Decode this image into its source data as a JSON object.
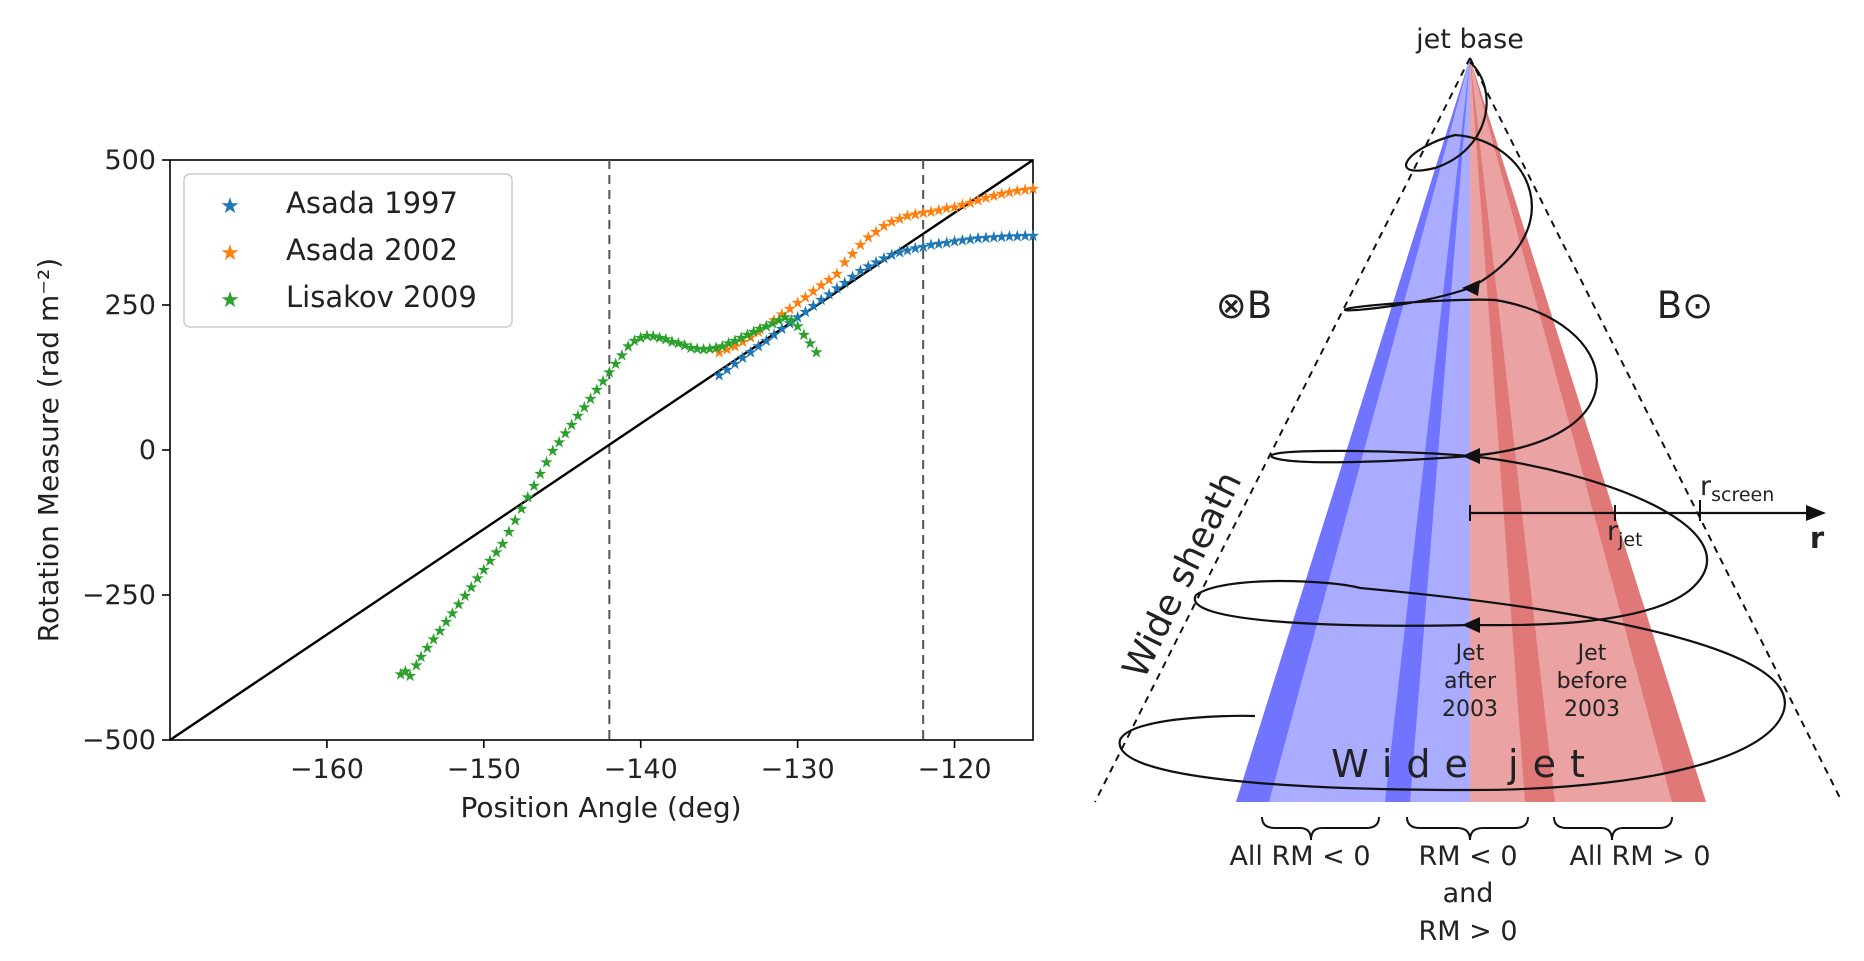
{
  "chart_data": [
    {
      "type": "scatter",
      "title": "",
      "xlabel": "Position Angle (deg)",
      "ylabel": "Rotation Measure (rad m⁻²)",
      "xlim": [
        -170,
        -115
      ],
      "ylim": [
        -500,
        500
      ],
      "xticks": [
        -160,
        -150,
        -140,
        -130,
        -120
      ],
      "xtick_labels": [
        "−160",
        "−150",
        "−140",
        "−130",
        "−120"
      ],
      "yticks": [
        500,
        250,
        0,
        -250,
        -500
      ],
      "ytick_labels": [
        "500",
        "250",
        "0",
        "−250",
        "−500"
      ],
      "legend_position": "top-left",
      "marker": "★",
      "series": [
        {
          "name": "Asada 1997",
          "color": "#1f77b4",
          "x": [
            -135,
            -134.5,
            -134,
            -133.5,
            -133,
            -132.5,
            -132,
            -131.5,
            -131,
            -130.5,
            -130,
            -129.5,
            -129,
            -128.5,
            -128,
            -127.5,
            -127,
            -126.5,
            -126,
            -125.5,
            -125,
            -124.5,
            -124,
            -123.5,
            -123,
            -122.5,
            -122,
            -121.5,
            -121,
            -120.5,
            -120,
            -119.5,
            -119,
            -118.5,
            -118,
            -117.5,
            -117,
            -116.5,
            -116,
            -115.5,
            -115
          ],
          "y": [
            130,
            140,
            150,
            160,
            170,
            180,
            190,
            200,
            210,
            220,
            230,
            240,
            250,
            260,
            270,
            280,
            290,
            300,
            310,
            318,
            325,
            332,
            338,
            342,
            346,
            349,
            352,
            355,
            357,
            359,
            361,
            363,
            365,
            366,
            367,
            368,
            369,
            370,
            370,
            371,
            371
          ]
        },
        {
          "name": "Asada 2002",
          "color": "#ff7f0e",
          "x": [
            -135,
            -134.5,
            -134,
            -133.5,
            -133,
            -132.5,
            -132,
            -131.5,
            -131,
            -130.5,
            -130,
            -129.5,
            -129,
            -128.5,
            -128,
            -127.5,
            -127,
            -126.5,
            -126,
            -125.5,
            -125,
            -124.5,
            -124,
            -123.5,
            -123,
            -122.5,
            -122,
            -121.5,
            -121,
            -120.5,
            -120,
            -119.5,
            -119,
            -118.5,
            -118,
            -117.5,
            -117,
            -116.5,
            -116,
            -115.5,
            -115
          ],
          "y": [
            170,
            175,
            180,
            188,
            196,
            205,
            215,
            225,
            235,
            245,
            255,
            265,
            275,
            285,
            295,
            305,
            325,
            340,
            355,
            368,
            378,
            388,
            395,
            400,
            405,
            408,
            410,
            412,
            415,
            418,
            420,
            424,
            428,
            432,
            436,
            440,
            443,
            446,
            448,
            450,
            452
          ]
        },
        {
          "name": "Lisakov 2009",
          "color": "#2ca02c",
          "x": [
            -155.3,
            -155,
            -154.7,
            -154.3,
            -154,
            -153.6,
            -153.2,
            -152.8,
            -152.4,
            -152,
            -151.6,
            -151.2,
            -150.8,
            -150.4,
            -150,
            -149.6,
            -149.2,
            -148.8,
            -148.4,
            -148,
            -147.6,
            -147.2,
            -146.8,
            -146.4,
            -146,
            -145.6,
            -145.2,
            -144.8,
            -144.4,
            -144,
            -143.6,
            -143.2,
            -142.8,
            -142.4,
            -142,
            -141.6,
            -141.2,
            -140.8,
            -140.4,
            -140,
            -139.6,
            -139.2,
            -138.8,
            -138.4,
            -138,
            -137.6,
            -137.2,
            -136.8,
            -136.4,
            -136,
            -135.6,
            -135.2,
            -134.8,
            -134.4,
            -134,
            -133.6,
            -133.2,
            -132.8,
            -132.4,
            -132,
            -131.6,
            -131.2,
            -130.8,
            -130.4,
            -130,
            -129.6,
            -129.2,
            -128.8
          ],
          "y": [
            -385,
            -380,
            -388,
            -370,
            -355,
            -340,
            -325,
            -310,
            -295,
            -280,
            -265,
            -250,
            -235,
            -220,
            -205,
            -190,
            -175,
            -160,
            -140,
            -120,
            -100,
            -80,
            -60,
            -40,
            -20,
            0,
            15,
            30,
            45,
            60,
            75,
            90,
            105,
            120,
            135,
            150,
            165,
            180,
            190,
            195,
            198,
            197,
            195,
            192,
            188,
            185,
            182,
            178,
            176,
            175,
            176,
            178,
            180,
            185,
            190,
            195,
            200,
            205,
            210,
            215,
            220,
            225,
            230,
            225,
            215,
            200,
            185,
            170
          ]
        }
      ],
      "reference_line": {
        "x": [
          -170,
          -115
        ],
        "y": [
          -500,
          500
        ],
        "color": "#000000"
      },
      "vlines": [
        {
          "x": -142,
          "style": "dashed",
          "color": "#555555"
        },
        {
          "x": -122,
          "style": "dashed",
          "color": "#555555"
        }
      ]
    },
    {
      "type": "diagram",
      "labels": {
        "jet_base": "jet base",
        "b_into": "⊗B",
        "b_out": "B⊙",
        "wide_sheath": "Wide sheath",
        "r_screen_main": "r",
        "r_screen_sub": "screen",
        "r_jet_main": "r",
        "r_jet_sub": "jet",
        "r_axis": "r",
        "jet_after_l1": "Jet",
        "jet_after_l2": "after",
        "jet_after_l3": "2003",
        "jet_before_l1": "Jet",
        "jet_before_l2": "before",
        "jet_before_l3": "2003",
        "wide_jet": "Wide jet",
        "brace_left": "All RM < 0",
        "brace_mid_l1": "RM < 0",
        "brace_mid_l2": "and",
        "brace_mid_l3": "RM > 0",
        "brace_right": "All RM > 0"
      },
      "colors": {
        "blue_light": "#a9acff",
        "blue_dark": "#7074ff",
        "red_light": "#eaa2a2",
        "red_dark": "#e07878"
      }
    }
  ]
}
